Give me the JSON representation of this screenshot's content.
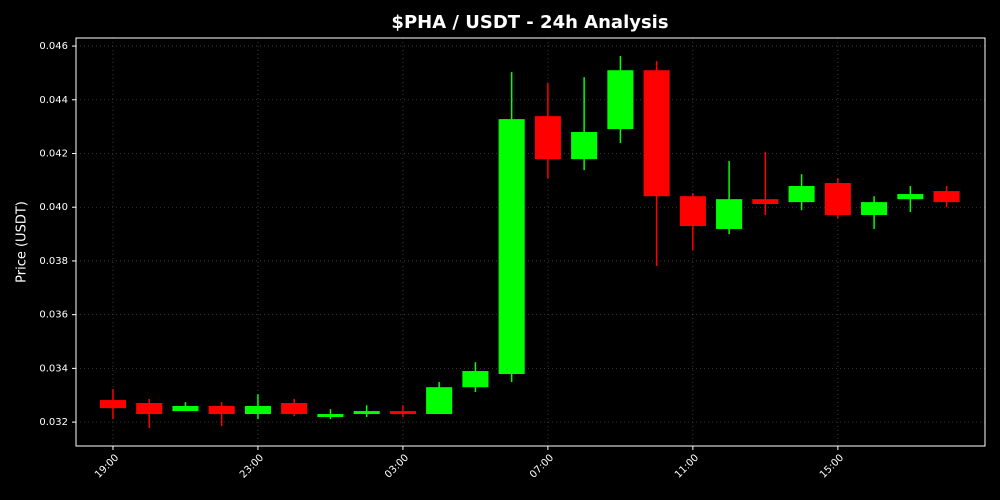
{
  "chart_data": {
    "type": "candlestick",
    "title": "$PHA / USDT - 24h Analysis",
    "y_label": "Price (USDT)",
    "categories": [
      "19:00",
      null,
      null,
      null,
      "23:00",
      null,
      null,
      null,
      "03:00",
      null,
      null,
      null,
      "07:00",
      null,
      null,
      null,
      "11:00",
      null,
      null,
      null,
      "15:00",
      null,
      null,
      null
    ],
    "open": [
      0.03282,
      0.03271,
      0.03241,
      0.0326,
      0.0323,
      0.03271,
      0.03219,
      0.0323,
      0.03241,
      0.0323,
      0.0333,
      0.03379,
      0.04339,
      0.04179,
      0.04291,
      0.0451,
      0.04041,
      0.03919,
      0.0403,
      0.04019,
      0.0409,
      0.03971,
      0.0403,
      0.0406
    ],
    "high": [
      0.03323,
      0.03286,
      0.03274,
      0.03274,
      0.03304,
      0.03286,
      0.03248,
      0.03263,
      0.03263,
      0.03349,
      0.03423,
      0.04503,
      0.04462,
      0.04484,
      0.04563,
      0.04544,
      0.04053,
      0.04172,
      0.04205,
      0.04123,
      0.04108,
      0.04041,
      0.04079,
      0.04079
    ],
    "low": [
      0.03211,
      0.03178,
      0.03241,
      0.03185,
      0.03211,
      0.03222,
      0.03211,
      0.03219,
      0.03219,
      0.0323,
      0.03312,
      0.03349,
      0.04108,
      0.04138,
      0.04239,
      0.03781,
      0.0384,
      0.039,
      0.03971,
      0.03989,
      0.03959,
      0.03919,
      0.03982,
      0.04
    ],
    "close": [
      0.03252,
      0.0323,
      0.0326,
      0.0323,
      0.0326,
      0.0323,
      0.0323,
      0.03241,
      0.0323,
      0.0333,
      0.0339,
      0.04328,
      0.04179,
      0.0428,
      0.0451,
      0.04041,
      0.0393,
      0.0403,
      0.04012,
      0.04079,
      0.03971,
      0.04019,
      0.04049,
      0.04019
    ],
    "up_color": "#00ff00",
    "down_color": "#ff0000",
    "ylim": [
      0.03111,
      0.0463
    ],
    "yticks": [
      0.032,
      0.034,
      0.036,
      0.038,
      {
        "value": 0.04,
        "label": "0.040"
      },
      0.042,
      0.044,
      0.046
    ],
    "grid": true
  }
}
